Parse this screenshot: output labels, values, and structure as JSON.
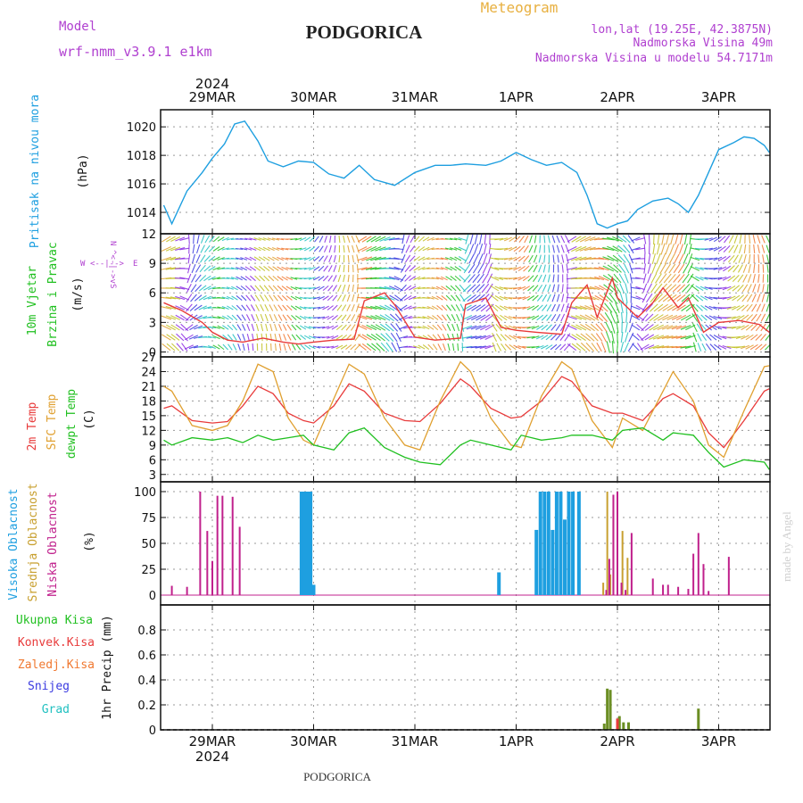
{
  "header": {
    "model_label": "Model",
    "model_name": "wrf-nmm_v3.9.1  e1km",
    "station": "PODGORICA",
    "meteogram": "Meteogram",
    "lonlat": "lon,lat (19.25E, 42.3875N)",
    "elev": "Nadmorska Visina 49m",
    "elev_model": "Nadmorska Visina u modelu 54.7171m",
    "footer_station": "PODGORICA",
    "credit": "made by Angel"
  },
  "dates": {
    "year": "2024",
    "labels": [
      "29MAR",
      "30MAR",
      "31MAR",
      "1APR",
      "2APR",
      "3APR"
    ]
  },
  "colors": {
    "pressure": "#1e9fe0",
    "temp2m": "#e83a3a",
    "sfc": "#e0a030",
    "dew": "#20c020",
    "high": "#1e9fe0",
    "mid": "#c8a030",
    "low": "#c0208c",
    "precip_total": "#20c020",
    "precip_conv": "#e83a3a",
    "precip_frz": "#f07830",
    "snow": "#3a3ae0",
    "hail": "#20c0c0",
    "wind_label": "#20c020",
    "compass": "#b040d0"
  },
  "panels": {
    "pressure": {
      "labels": [
        "Pritisak na nivou mora"
      ],
      "unit": "(hPa)",
      "ticks": [
        "1014",
        "1016",
        "1018",
        "1020"
      ]
    },
    "wind": {
      "labels": [
        "10m Vjetar",
        "Brzina i Pravac"
      ],
      "unit": "(m/s)",
      "ticks": [
        "0",
        "3",
        "6",
        "9",
        "12"
      ],
      "compass": {
        "n": "N",
        "s": "S",
        "e": "E",
        "w": "W",
        "arrow_ns": "^<-|->v",
        "arrow_ew": "<--|-->"
      }
    },
    "temp": {
      "labels": [
        "2m Temp",
        "SFC Temp",
        "dewpt Temp"
      ],
      "unit": "(C)",
      "ticks": [
        "3",
        "6",
        "9",
        "12",
        "15",
        "18",
        "21",
        "24",
        "27"
      ]
    },
    "cloud": {
      "labels": [
        "Visoka Oblacnost",
        "Srednja Oblacnost",
        "Niska Oblacnost"
      ],
      "unit": "(%)",
      "ticks": [
        "0",
        "25",
        "50",
        "75",
        "100"
      ]
    },
    "precip": {
      "labels": [
        "Ukupna Kisa",
        "Konvek.Kisa",
        "Zaledj.Kisa",
        "Snijeg",
        "Grad"
      ],
      "unit": "1hr Precip (mm)",
      "ticks": [
        "0",
        "0.2",
        "0.4",
        "0.6",
        "0.8"
      ]
    }
  },
  "chart_data": [
    {
      "type": "line",
      "title": "",
      "ylabel": "Pritisak na nivou mora (hPa)",
      "ylim": [
        1012.5,
        1021.2
      ],
      "x_unit": "day index (0 = 29MAR 00UTC)",
      "series": [
        {
          "name": "Pritisak na nivou mora",
          "x": [
            -0.48,
            -0.4,
            -0.25,
            -0.1,
            0.0,
            0.12,
            0.22,
            0.32,
            0.45,
            0.55,
            0.7,
            0.85,
            1.0,
            1.15,
            1.3,
            1.45,
            1.6,
            1.8,
            2.0,
            2.2,
            2.35,
            2.5,
            2.7,
            2.85,
            3.0,
            3.15,
            3.3,
            3.45,
            3.6,
            3.7,
            3.8,
            3.9,
            4.0,
            4.1,
            4.2,
            4.35,
            4.5,
            4.6,
            4.7,
            4.8,
            5.0,
            5.15,
            5.25,
            5.35,
            5.45,
            5.5
          ],
          "y": [
            1014.5,
            1013.2,
            1015.5,
            1016.8,
            1017.8,
            1018.8,
            1020.2,
            1020.4,
            1019.0,
            1017.6,
            1017.2,
            1017.6,
            1017.5,
            1016.7,
            1016.4,
            1017.3,
            1016.3,
            1015.9,
            1016.8,
            1017.3,
            1017.3,
            1017.4,
            1017.3,
            1017.6,
            1018.2,
            1017.7,
            1017.3,
            1017.5,
            1016.8,
            1015.2,
            1013.2,
            1012.9,
            1013.2,
            1013.4,
            1014.2,
            1014.8,
            1015.0,
            1014.6,
            1014.0,
            1015.2,
            1018.4,
            1018.9,
            1019.3,
            1019.2,
            1018.7,
            1018.2
          ]
        }
      ]
    },
    {
      "type": "line",
      "title": "",
      "ylabel": "10m Vjetar Brzina i Pravac (m/s)",
      "ylim": [
        -0.5,
        12
      ],
      "series": [
        {
          "name": "Brzina",
          "x": [
            -0.48,
            -0.3,
            -0.1,
            0.0,
            0.15,
            0.3,
            0.5,
            0.7,
            0.85,
            1.0,
            1.2,
            1.4,
            1.5,
            1.7,
            1.8,
            2.0,
            2.2,
            2.45,
            2.5,
            2.7,
            2.85,
            3.0,
            3.2,
            3.45,
            3.55,
            3.7,
            3.8,
            3.95,
            4.0,
            4.2,
            4.35,
            4.45,
            4.6,
            4.7,
            4.85,
            5.0,
            5.2,
            5.4,
            5.5
          ],
          "y": [
            5.0,
            4.2,
            3.0,
            2.0,
            1.2,
            1.0,
            1.4,
            1.0,
            0.8,
            1.0,
            1.2,
            1.3,
            5.2,
            6.0,
            4.8,
            1.5,
            1.2,
            1.4,
            4.8,
            5.5,
            2.5,
            2.2,
            2.0,
            1.8,
            5.0,
            6.8,
            3.5,
            7.5,
            5.5,
            3.5,
            5.0,
            6.5,
            4.5,
            5.5,
            2.0,
            3.0,
            3.2,
            2.8,
            2.0
          ]
        }
      ]
    },
    {
      "type": "line",
      "title": "",
      "ylabel": "Temp (C)",
      "ylim": [
        1.5,
        27
      ],
      "x": [
        -0.48,
        -0.4,
        -0.2,
        0.0,
        0.15,
        0.3,
        0.45,
        0.6,
        0.75,
        0.9,
        1.0,
        1.2,
        1.35,
        1.5,
        1.7,
        1.9,
        2.05,
        2.25,
        2.45,
        2.55,
        2.75,
        2.95,
        3.05,
        3.25,
        3.45,
        3.55,
        3.75,
        3.95,
        4.05,
        4.25,
        4.45,
        4.55,
        4.75,
        4.9,
        5.05,
        5.25,
        5.45,
        5.5
      ],
      "series": [
        {
          "name": "2m Temp",
          "y": [
            16.5,
            17.0,
            14.0,
            13.5,
            13.8,
            17.0,
            21.0,
            19.5,
            15.5,
            14.0,
            13.5,
            17.0,
            21.5,
            20.0,
            15.5,
            14.0,
            13.8,
            17.5,
            22.5,
            21.0,
            16.5,
            14.5,
            14.8,
            18.0,
            23.0,
            22.0,
            17.0,
            15.5,
            15.5,
            14.0,
            18.5,
            19.5,
            17.0,
            11.5,
            8.5,
            14.0,
            20.0,
            20.5
          ]
        },
        {
          "name": "SFC Temp",
          "y": [
            21.0,
            20.0,
            13.0,
            12.0,
            13.0,
            18.0,
            25.5,
            24.0,
            14.5,
            10.0,
            9.0,
            18.5,
            25.5,
            23.5,
            14.5,
            9.0,
            8.0,
            18.0,
            26.0,
            24.0,
            14.5,
            9.0,
            8.5,
            19.0,
            26.0,
            24.5,
            14.0,
            8.5,
            14.5,
            12.0,
            20.0,
            24.0,
            18.0,
            9.0,
            6.5,
            16.0,
            25.0,
            25.2
          ]
        },
        {
          "name": "dewpt Temp",
          "y": [
            10.0,
            9.0,
            10.5,
            10.0,
            10.5,
            9.5,
            11.0,
            10.0,
            10.5,
            11.0,
            9.0,
            8.0,
            11.5,
            12.5,
            8.5,
            6.5,
            5.5,
            5.0,
            9.0,
            10.0,
            9.0,
            8.0,
            11.0,
            10.0,
            10.5,
            11.0,
            11.0,
            10.0,
            12.0,
            12.5,
            10.0,
            11.5,
            11.0,
            7.5,
            4.5,
            6.0,
            5.5,
            4.0
          ]
        }
      ]
    },
    {
      "type": "bar",
      "title": "",
      "ylabel": "Oblacnost (%)",
      "ylim": [
        0,
        100
      ],
      "series": [
        {
          "name": "Visoka Oblacnost",
          "x": [
            0.88,
            0.91,
            0.94,
            0.97,
            1.0,
            2.83,
            3.2,
            3.24,
            3.28,
            3.32,
            3.36,
            3.4,
            3.44,
            3.48,
            3.52,
            3.56,
            3.62
          ],
          "y": [
            100,
            100,
            100,
            100,
            10,
            22,
            63,
            100,
            100,
            100,
            63,
            100,
            100,
            73,
            100,
            100,
            100
          ]
        },
        {
          "name": "Srednja Oblacnost",
          "x": [
            3.86,
            3.9,
            3.93,
            3.96,
            4.0,
            4.05,
            4.1
          ],
          "y": [
            12,
            100,
            20,
            82,
            100,
            62,
            36
          ]
        },
        {
          "name": "Niska Oblacnost",
          "x": [
            -0.4,
            -0.25,
            -0.12,
            -0.05,
            0.0,
            0.05,
            0.1,
            0.2,
            0.27,
            3.89,
            3.92,
            3.96,
            4.0,
            4.04,
            4.08,
            4.14,
            4.35,
            4.45,
            4.5,
            4.6,
            4.7,
            4.75,
            4.8,
            4.85,
            4.9,
            5.1
          ],
          "y": [
            9,
            8,
            100,
            62,
            33,
            96,
            96,
            95,
            66,
            5,
            35,
            97,
            100,
            12,
            5,
            60,
            16,
            10,
            10,
            8,
            6,
            40,
            60,
            30,
            4,
            37
          ]
        }
      ]
    },
    {
      "type": "bar",
      "title": "",
      "ylabel": "1hr Precip (mm)",
      "ylim": [
        0,
        1.0
      ],
      "series": [
        {
          "name": "Ukupna Kisa",
          "x": [
            3.87,
            3.9,
            3.93,
            4.0,
            4.02,
            4.06,
            4.11,
            4.8
          ],
          "y": [
            0.05,
            0.33,
            0.32,
            0.02,
            0.11,
            0.06,
            0.06,
            0.17
          ]
        },
        {
          "name": "Konvek.Kisa",
          "x": [
            4.0
          ],
          "y": [
            0.09
          ]
        }
      ]
    }
  ]
}
